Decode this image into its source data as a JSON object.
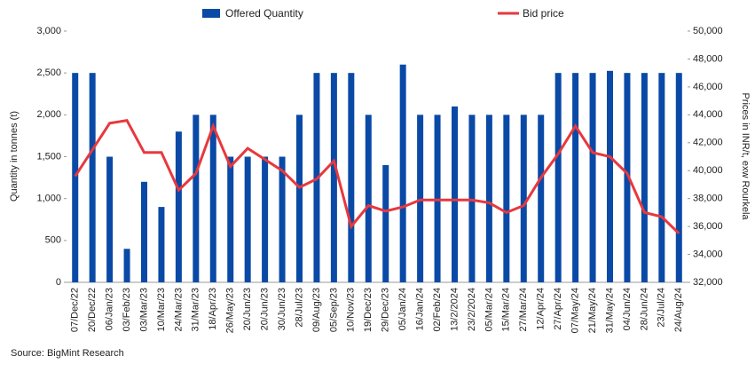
{
  "chart_data": {
    "type": "bar_line",
    "categories": [
      "07/Dec/22",
      "20/Dec/22",
      "06/Jan/23",
      "03/Feb/23",
      "03/Mar/23",
      "10/Mar/23",
      "24/Mar/23",
      "31/Mar/23",
      "18/Apr/23",
      "26/May/23",
      "20/Jun/23",
      "20/Jun/23",
      "30/Jun/23",
      "28/Jul/23",
      "09/Aug/23",
      "05/Sep/23",
      "10/Nov/23",
      "19/Dec/23",
      "29/Dec/23",
      "05/Jan/24",
      "16/Jan/24",
      "02/Feb/24",
      "13/2/2024",
      "23/2/2024",
      "05/Mar/24",
      "15/Mar/24",
      "27/Mar/24",
      "12/Apr/24",
      "27/Apr/24",
      "07/May/24",
      "21/May/24",
      "31/May/24",
      "04/Jun/24",
      "28/Jun/24",
      "23/Jul/24",
      "24/Aug/24"
    ],
    "series": [
      {
        "name": "Offered Quantity",
        "type": "bar",
        "color": "#0a4aa6",
        "values": [
          2500,
          2500,
          1500,
          400,
          1200,
          900,
          1800,
          2000,
          2000,
          1500,
          1500,
          1500,
          1500,
          2000,
          2500,
          2500,
          2500,
          2000,
          1400,
          2600,
          2000,
          2000,
          2100,
          2000,
          2000,
          2000,
          2000,
          2000,
          2500,
          2500,
          2500,
          2525,
          2500,
          2500,
          2500,
          2500
        ]
      },
      {
        "name": "Bid price",
        "type": "line",
        "axis": "y2",
        "color": "#e8383d",
        "values": [
          39600,
          41500,
          43400,
          43600,
          41300,
          41300,
          38600,
          39800,
          43200,
          40300,
          41600,
          40800,
          40000,
          38800,
          39400,
          40700,
          36000,
          37500,
          37100,
          37400,
          37900,
          37900,
          37900,
          37900,
          37700,
          37000,
          37500,
          39500,
          41200,
          43200,
          41300,
          41000,
          39800,
          37000,
          36700,
          35500
        ]
      }
    ],
    "y_label": "Quantity in tonnes (t)",
    "y2_label": "Prices in INR/t, exw Rourkela",
    "ylim": [
      0,
      3000
    ],
    "yticks": [
      0,
      500,
      {
        "value": 1000,
        "label": "1,000"
      },
      {
        "value": 1500,
        "label": "1,500"
      },
      {
        "value": 2000,
        "label": "2,000"
      },
      {
        "value": 2500,
        "label": "2,500"
      },
      {
        "value": 3000,
        "label": "3,000"
      }
    ],
    "y2lim": [
      32000,
      50000
    ],
    "y2ticks": [
      {
        "value": 32000,
        "label": "32,000"
      },
      {
        "value": 34000,
        "label": "34,000"
      },
      {
        "value": 36000,
        "label": "36,000"
      },
      {
        "value": 38000,
        "label": "38,000"
      },
      {
        "value": 40000,
        "label": "40,000"
      },
      {
        "value": 42000,
        "label": "42,000"
      },
      {
        "value": 44000,
        "label": "44,000"
      },
      {
        "value": 46000,
        "label": "46,000"
      },
      {
        "value": 48000,
        "label": "48,000"
      },
      {
        "value": 50000,
        "label": "50,000"
      }
    ],
    "source": "Source: BigMint Research"
  }
}
